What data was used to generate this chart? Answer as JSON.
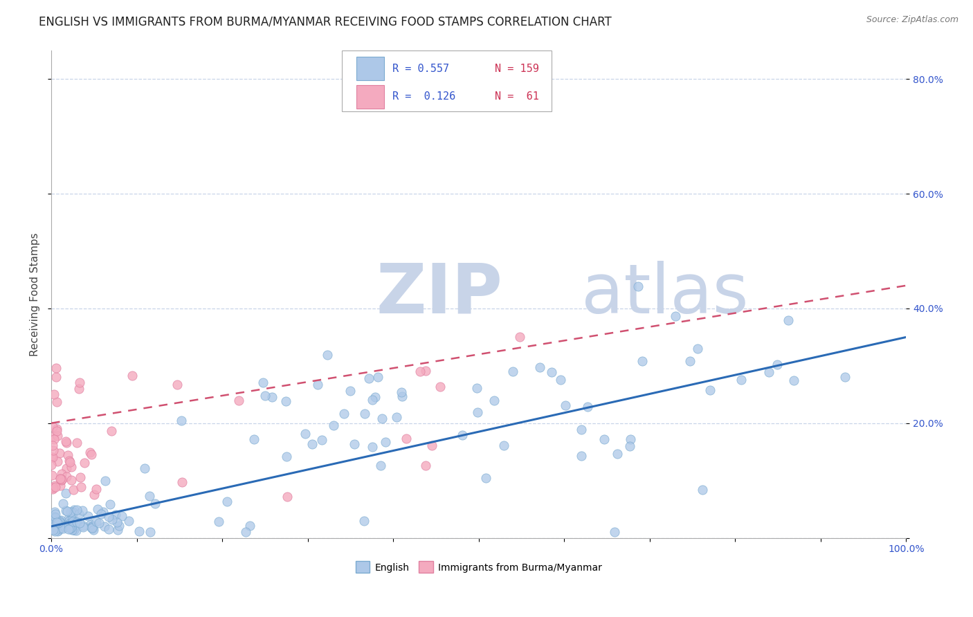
{
  "title": "ENGLISH VS IMMIGRANTS FROM BURMA/MYANMAR RECEIVING FOOD STAMPS CORRELATION CHART",
  "source": "Source: ZipAtlas.com",
  "ylabel": "Receiving Food Stamps",
  "xlabel": "",
  "xlim": [
    0.0,
    1.0
  ],
  "ylim": [
    0.0,
    0.85
  ],
  "xtick_labels": [
    "0.0%",
    "",
    "",
    "",
    "",
    "",
    "",
    "",
    "",
    "",
    "100.0%"
  ],
  "ytick_labels": [
    "",
    "20.0%",
    "40.0%",
    "60.0%",
    "80.0%"
  ],
  "english_color": "#adc8e8",
  "english_edge": "#7aaad0",
  "burma_color": "#f4aabf",
  "burma_edge": "#e080a0",
  "english_line_color": "#2a6ab5",
  "burma_line_color": "#d05070",
  "grid_color": "#c8d4e8",
  "watermark_zip_color": "#c8d4e8",
  "watermark_atlas_color": "#c8d4e8",
  "legend_R_color": "#3355cc",
  "legend_N_color": "#cc3355",
  "R_english": 0.557,
  "N_english": 159,
  "R_burma": 0.126,
  "N_burma": 61,
  "background_color": "#ffffff",
  "title_fontsize": 12,
  "axis_label_fontsize": 11,
  "tick_fontsize": 10,
  "eng_line_y0": 0.02,
  "eng_line_y1": 0.35,
  "bur_line_y0": 0.2,
  "bur_line_y1": 0.44
}
